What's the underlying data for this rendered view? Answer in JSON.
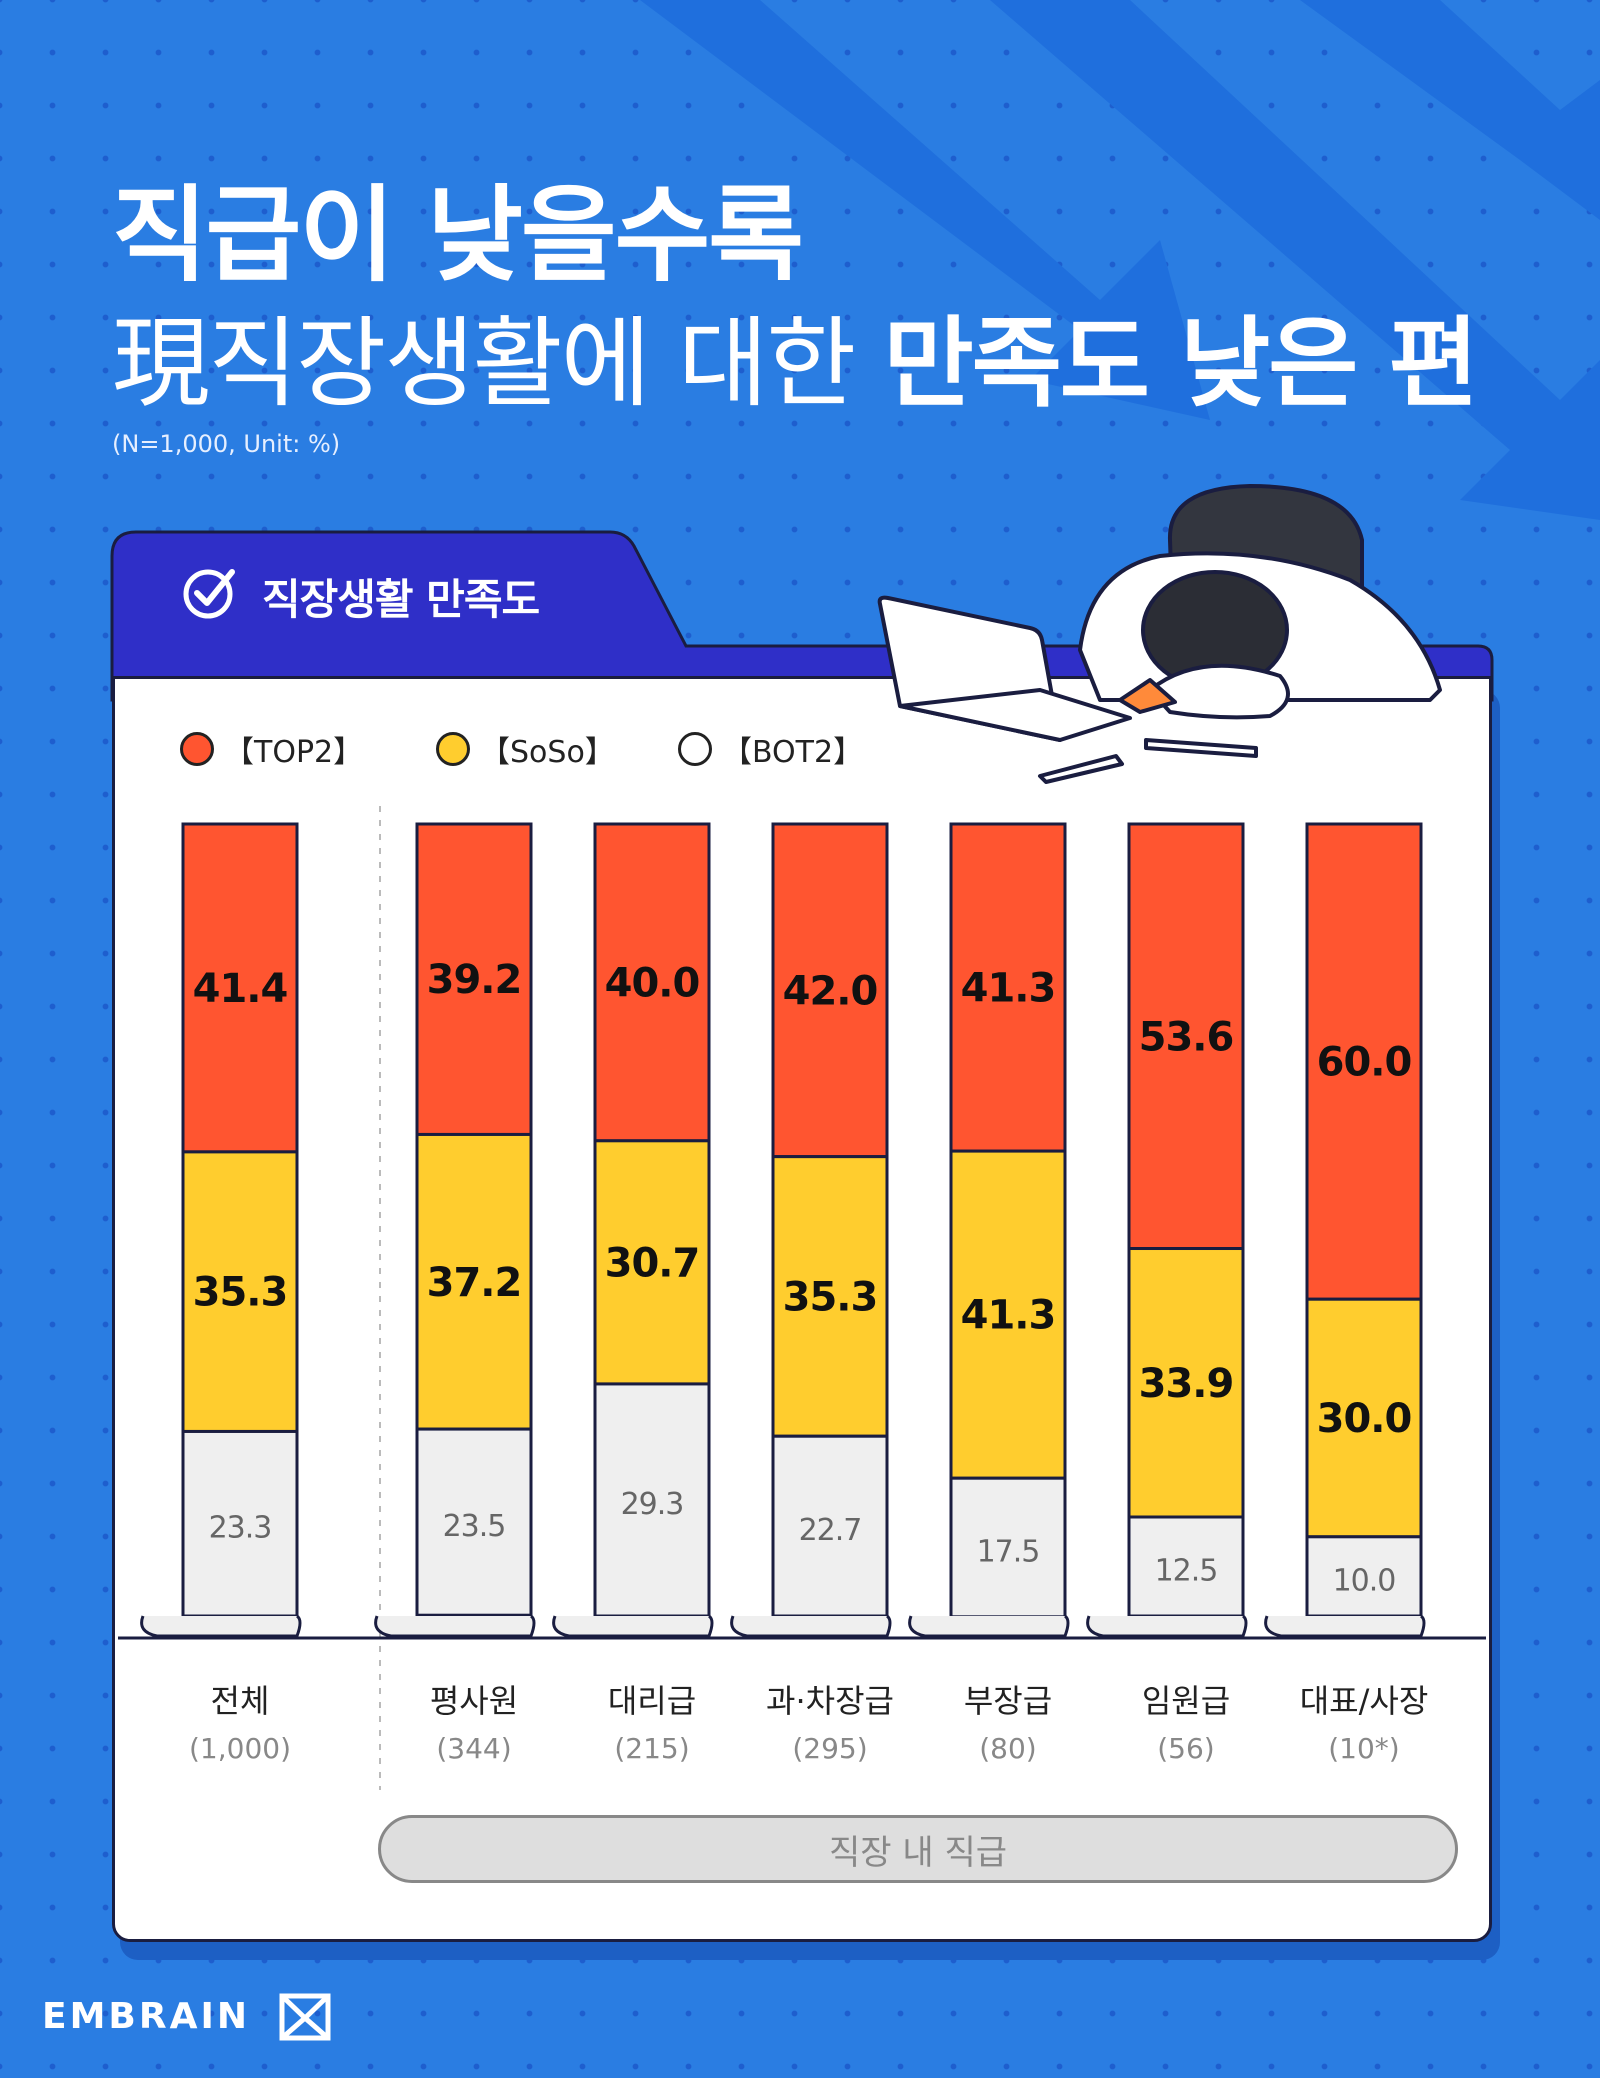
{
  "header": {
    "title_line1": "직급이 낮을수록",
    "title_line2_prefix": "現직장생활에 대한 ",
    "title_line2_bold": "만족도 낮은 편",
    "note": "(N=1,000, Unit: %)"
  },
  "panel": {
    "tab_label": "직장생활 만족도",
    "group_label": "직장 내 직급"
  },
  "legend": [
    "【TOP2】",
    "【SoSo】",
    "【BOT2】"
  ],
  "brand": "EMBRAIN",
  "colors": {
    "top2": "#ff5530",
    "soso": "#ffcd2e",
    "bot2": "#efefef",
    "background": "#2a7de2",
    "tab": "#2f2fc8"
  },
  "chart_data": {
    "type": "bar",
    "stacked": true,
    "unit": "%",
    "categories": [
      "전체",
      "평사원",
      "대리급",
      "과·차장급",
      "부장급",
      "임원급",
      "대표/사장"
    ],
    "category_counts": [
      "(1,000)",
      "(344)",
      "(215)",
      "(295)",
      "(80)",
      "(56)",
      "(10*)"
    ],
    "series": [
      {
        "name": "【TOP2】",
        "values": [
          41.4,
          39.2,
          40.0,
          42.0,
          41.3,
          53.6,
          60.0
        ]
      },
      {
        "name": "【SoSo】",
        "values": [
          35.3,
          37.2,
          30.7,
          35.3,
          41.3,
          33.9,
          30.0
        ]
      },
      {
        "name": "【BOT2】",
        "values": [
          23.3,
          23.5,
          29.3,
          22.7,
          17.5,
          12.5,
          10.0
        ]
      }
    ],
    "ylim": [
      0,
      100
    ],
    "grid": false,
    "legend_position": "top-left"
  }
}
